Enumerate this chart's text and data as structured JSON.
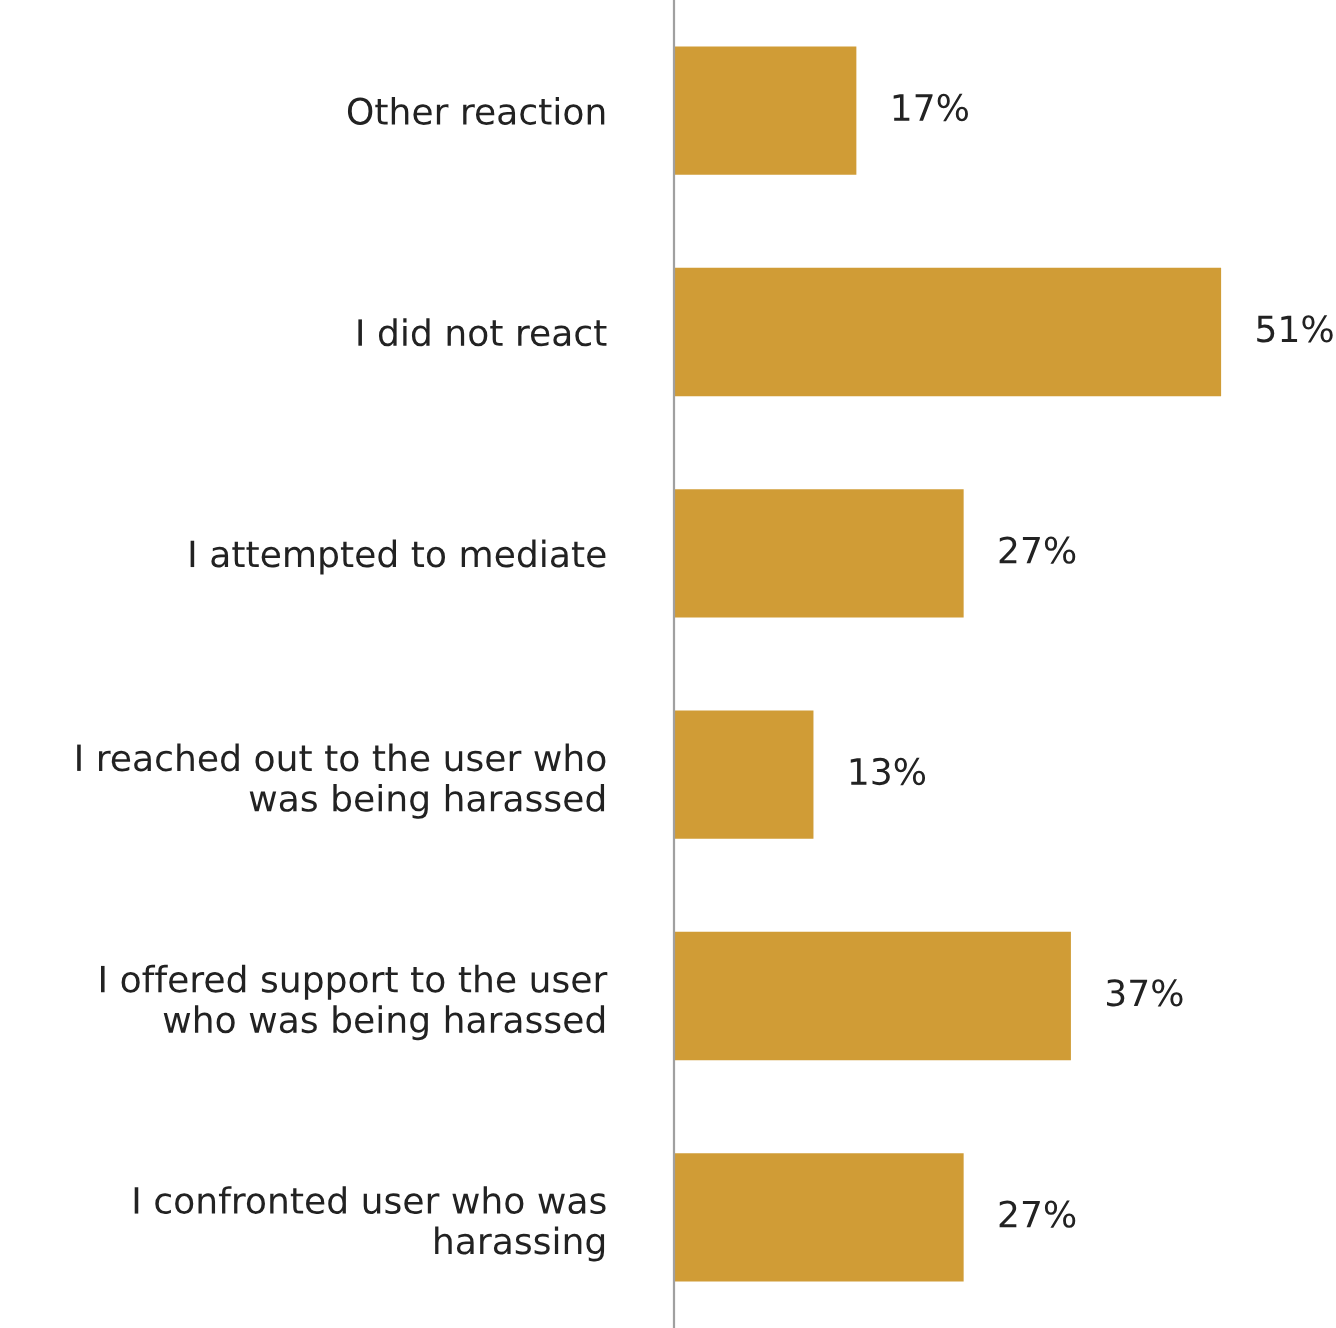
{
  "chart_data": {
    "type": "bar",
    "orientation": "horizontal",
    "categories": [
      "Other reaction",
      "I did not react",
      "I attempted to mediate",
      "I reached out to the user who\nwas being harassed",
      "I offered support to the user\nwho was being harassed",
      "I confronted user who was\nharassing"
    ],
    "values": [
      17,
      51,
      27,
      13,
      37,
      27
    ],
    "value_labels": [
      "17%",
      "51%",
      "27%",
      "13%",
      "37%",
      "27%"
    ],
    "color": "#d09c36"
  }
}
